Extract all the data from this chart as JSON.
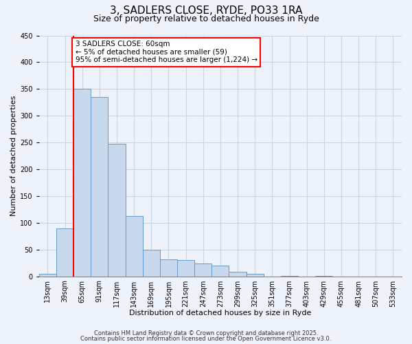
{
  "title": "3, SADLERS CLOSE, RYDE, PO33 1RA",
  "subtitle": "Size of property relative to detached houses in Ryde",
  "xlabel": "Distribution of detached houses by size in Ryde",
  "ylabel": "Number of detached properties",
  "categories": [
    "13sqm",
    "39sqm",
    "65sqm",
    "91sqm",
    "117sqm",
    "143sqm",
    "169sqm",
    "195sqm",
    "221sqm",
    "247sqm",
    "273sqm",
    "299sqm",
    "325sqm",
    "351sqm",
    "377sqm",
    "403sqm",
    "429sqm",
    "455sqm",
    "481sqm",
    "507sqm",
    "533sqm"
  ],
  "values": [
    5,
    90,
    350,
    335,
    247,
    112,
    50,
    32,
    30,
    24,
    20,
    8,
    4,
    0,
    1,
    0,
    1,
    0,
    0,
    0,
    0
  ],
  "bar_color": "#c8d9ee",
  "bar_edge_color": "#6699cc",
  "annotation_text": "3 SADLERS CLOSE: 60sqm\n← 5% of detached houses are smaller (59)\n95% of semi-detached houses are larger (1,224) →",
  "annotation_box_color": "white",
  "annotation_box_edge_color": "red",
  "redline_color": "red",
  "ylim": [
    0,
    450
  ],
  "yticks": [
    0,
    50,
    100,
    150,
    200,
    250,
    300,
    350,
    400,
    450
  ],
  "footer_line1": "Contains HM Land Registry data © Crown copyright and database right 2025.",
  "footer_line2": "Contains public sector information licensed under the Open Government Licence v3.0.",
  "bg_color": "#eef2fb",
  "grid_color": "#c8d4e8",
  "title_fontsize": 11,
  "subtitle_fontsize": 9,
  "axis_label_fontsize": 8,
  "tick_fontsize": 7,
  "footer_fontsize": 6
}
